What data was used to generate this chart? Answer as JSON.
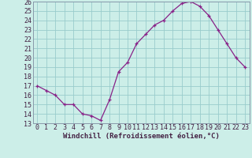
{
  "x": [
    0,
    1,
    2,
    3,
    4,
    5,
    6,
    7,
    8,
    9,
    10,
    11,
    12,
    13,
    14,
    15,
    16,
    17,
    18,
    19,
    20,
    21,
    22,
    23
  ],
  "y": [
    17,
    16.5,
    16,
    15,
    15,
    14,
    13.8,
    13.3,
    15.5,
    18.5,
    19.5,
    21.5,
    22.5,
    23.5,
    24,
    25,
    25.8,
    26,
    25.5,
    24.5,
    23,
    21.5,
    20,
    19
  ],
  "line_color": "#882288",
  "marker": "+",
  "bg_color": "#cceee8",
  "grid_color": "#99cccc",
  "xlabel": "Windchill (Refroidissement éolien,°C)",
  "xlim_min": -0.5,
  "xlim_max": 23.5,
  "ylim_min": 13,
  "ylim_max": 26,
  "yticks": [
    13,
    14,
    15,
    16,
    17,
    18,
    19,
    20,
    21,
    22,
    23,
    24,
    25,
    26
  ],
  "xticks": [
    0,
    1,
    2,
    3,
    4,
    5,
    6,
    7,
    8,
    9,
    10,
    11,
    12,
    13,
    14,
    15,
    16,
    17,
    18,
    19,
    20,
    21,
    22,
    23
  ],
  "xlabel_fontsize": 6.5,
  "tick_fontsize": 6,
  "line_width": 0.9,
  "marker_size": 3.5,
  "marker_edge_width": 0.9
}
